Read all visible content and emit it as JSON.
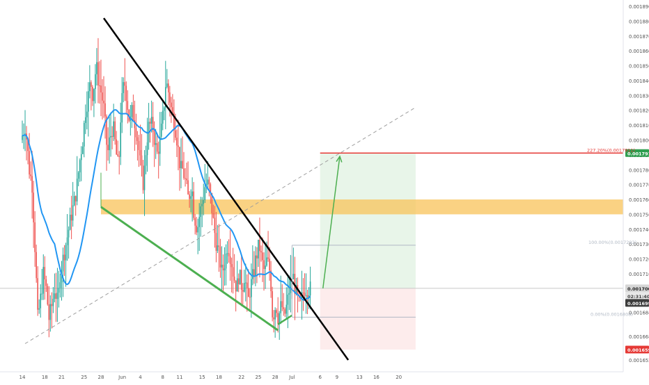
{
  "chart_data": {
    "type": "candlestick",
    "price_axis": {
      "ticks": [
        "0.0018900",
        "0.0018800",
        "0.0018700",
        "0.0018600",
        "0.0018500",
        "0.0018400",
        "0.0018300",
        "0.0018200",
        "0.0018100",
        "0.0018000",
        "0.0017900",
        "0.0017800",
        "0.0017700",
        "0.0017600",
        "0.0017500",
        "0.0017400",
        "0.0017300",
        "0.0017200",
        "0.0017100",
        "0.0017000",
        "0.0016900",
        "0.0016840",
        "0.0016680",
        "0.0016520"
      ],
      "tick_values": [
        0.00189,
        0.00188,
        0.00187,
        0.00186,
        0.00185,
        0.00184,
        0.00183,
        0.00182,
        0.00181,
        0.0018,
        0.00179,
        0.00178,
        0.00177,
        0.00176,
        0.00175,
        0.00174,
        0.00173,
        0.00172,
        0.00171,
        0.0017,
        0.00169,
        0.001684,
        0.001668,
        0.001652
      ],
      "ylim": [
        0.001649,
        0.001895
      ]
    },
    "time_axis": {
      "labels": [
        "14",
        "18",
        "21",
        "25",
        "28",
        "Jun",
        "4",
        "8",
        "11",
        "15",
        "18",
        "22",
        "25",
        "28",
        "Jul",
        "6",
        "9",
        "13",
        "16",
        "20"
      ]
    },
    "price_labels": {
      "target": "0.0017912",
      "current": "0.0017002",
      "countdown": "02:31:40",
      "ma_value": "0.0016990",
      "stop": "0.0016590"
    },
    "position": {
      "entry": 0.0017002,
      "target": 0.0017912,
      "stop": 0.001659,
      "time_start": "Jul 6",
      "time_end": "Jul 23"
    },
    "fib_labels": {
      "level_227": "227.20%(0.0017911)",
      "level_100": "100.00%(0.0017292)",
      "level_0": "0.00%(0.0016808)"
    },
    "fib_levels": {
      "level_227": 0.0017911,
      "level_100": 0.0017292,
      "level_0": 0.0016808
    },
    "resistance_zone": {
      "low": 0.00175,
      "high": 0.00176
    },
    "lines": {
      "falling_wedge_top": [
        {
          "t": "May 28.5",
          "p": 0.001882
        },
        {
          "t": "Jul 11",
          "p": 0.001652
        }
      ],
      "falling_wedge_bottom": [
        {
          "t": "May 28",
          "p": 0.001755
        },
        {
          "t": "Jun 28.5",
          "p": 0.001672
        }
      ],
      "small_base": [
        {
          "t": "Jun 28.5",
          "p": 0.001676
        },
        {
          "t": "Jul 1",
          "p": 0.001682
        }
      ],
      "dashed_trendline": [
        {
          "t": "May 14.5",
          "p": 0.001663
        },
        {
          "t": "Jul 23",
          "p": 0.001822
        }
      ],
      "projection_arrow": [
        {
          "t": "Jul 6.5",
          "p": 0.0017002
        },
        {
          "t": "Jul 9.5",
          "p": 0.001789
        }
      ]
    },
    "colors": {
      "up_candle": "#26a69a",
      "down_candle": "#ef5350",
      "moving_average": "#2196f3",
      "wedge_line": "#000000",
      "support_line": "#4caf50",
      "resistance_zone": "#f8c35a",
      "target_zone": "#e8f5e9",
      "stop_zone": "#fdecec",
      "target_line": "#e53935"
    }
  }
}
